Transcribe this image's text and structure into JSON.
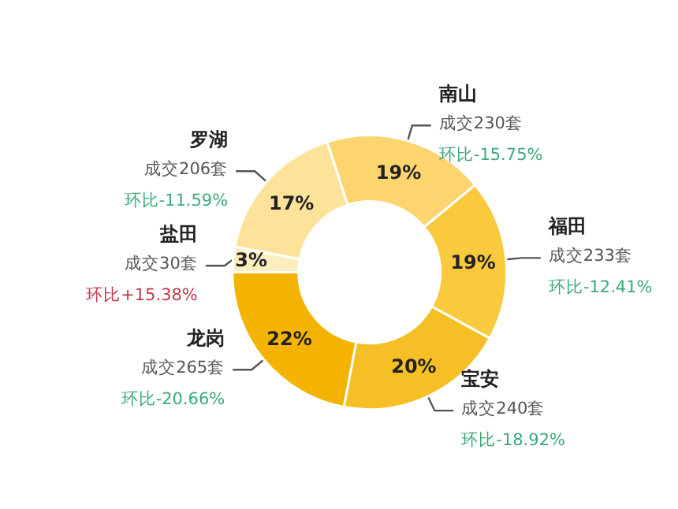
{
  "chart_data": {
    "type": "donut",
    "categories": [
      "南山",
      "福田",
      "宝安",
      "龙岗",
      "盐田",
      "罗湖"
    ],
    "values": [
      19,
      19,
      20,
      22,
      3,
      17
    ],
    "colors": [
      "#fcd56e",
      "#f9c93e",
      "#f6bf26",
      "#f3b300",
      "#fdeec0",
      "#fde29a"
    ],
    "value_labels": [
      "19%",
      "19%",
      "20%",
      "22%",
      "3%",
      "17%"
    ],
    "annotations": [
      "成交230套",
      "环比-15.75%",
      "成交233套",
      "环比-12.41%",
      "成交240套",
      "环比-18.92%",
      "成交265套",
      "环比-20.66%",
      "成交30套",
      "环比+15.38%",
      "成交206套",
      "环比-11.59%"
    ]
  }
}
